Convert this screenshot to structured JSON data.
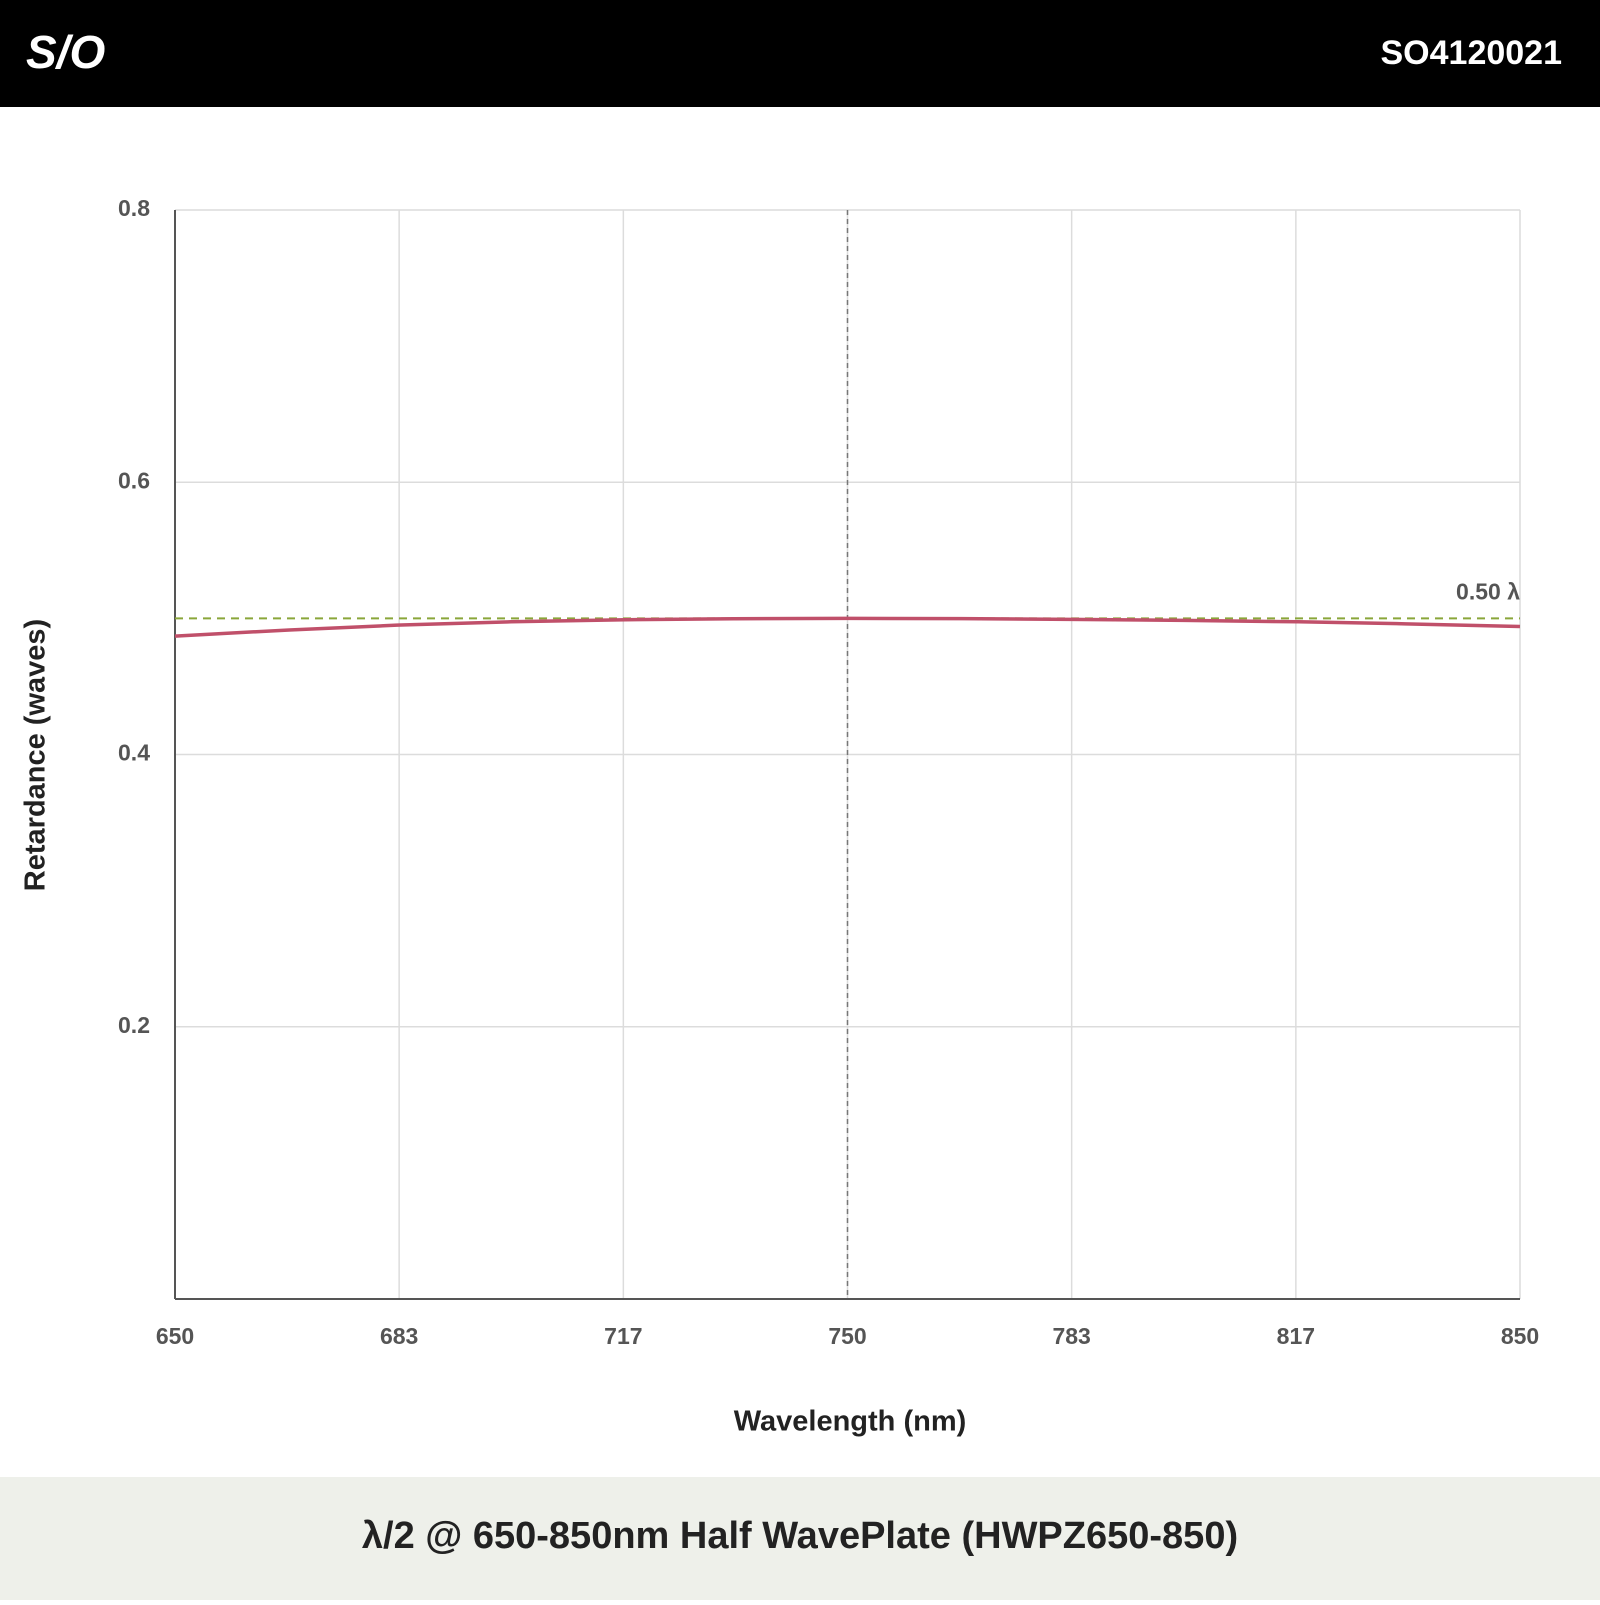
{
  "header": {
    "logo": "S/O",
    "code": "SO4120021"
  },
  "chart_data": {
    "type": "line",
    "title": "λ/2 @ 650-850nm Half WavePlate (HWPZ650-850)",
    "x_label": "Wavelength (nm)",
    "y_label": "Retardance (waves)",
    "x": [
      650,
      667,
      683,
      700,
      717,
      733,
      750,
      767,
      783,
      800,
      817,
      833,
      850
    ],
    "values": [
      0.487,
      0.4915,
      0.495,
      0.4975,
      0.499,
      0.4997,
      0.5,
      0.4998,
      0.4993,
      0.4985,
      0.4975,
      0.496,
      0.494
    ],
    "color": "#c0506a",
    "xlim": [
      650,
      850
    ],
    "xticks": [
      650,
      {
        "value": 683.33,
        "label": "683"
      },
      {
        "value": 716.67,
        "label": "717"
      },
      750,
      {
        "value": 783.33,
        "label": "783"
      },
      {
        "value": 816.67,
        "label": "817"
      },
      850
    ],
    "ylim": [
      0,
      0.8
    ],
    "yticks": [
      0.2,
      0.4,
      0.6,
      0.8
    ],
    "grid": true,
    "reference_line": {
      "value": 0.5,
      "label": "0.50 λ",
      "color": "#8aa63a"
    },
    "vline": 750
  }
}
